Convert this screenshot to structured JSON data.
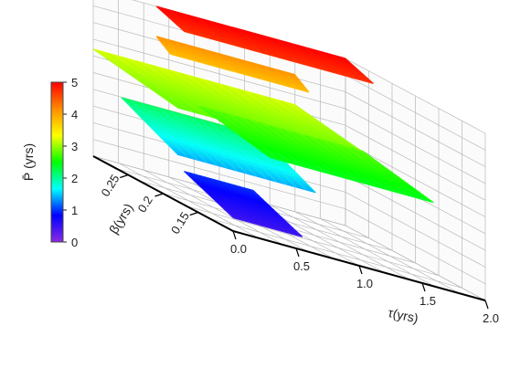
{
  "chart_data": {
    "type": "surface3d",
    "title": "",
    "xlabel": "τ(yrs)",
    "ylabel": "β(yrs)",
    "zlabel": "P̄ (yrs)",
    "xlim": [
      0.0,
      2.0
    ],
    "ylim": [
      0.1,
      0.3
    ],
    "zlim": [
      0,
      5
    ],
    "x_ticks": [
      "0.0",
      "0.5",
      "1.0",
      "1.5",
      "2.0"
    ],
    "y_ticks": [
      "0.15",
      "0.2",
      "0.25"
    ],
    "colorbar": {
      "label": "P̄ (yrs)",
      "ticks": [
        "0",
        "1",
        "2",
        "3",
        "4",
        "5"
      ],
      "range": [
        0,
        5
      ],
      "stops": [
        "#8a2be2",
        "#0000ff",
        "#00ffff",
        "#00ff00",
        "#ffff00",
        "#ff8c00",
        "#ff0000"
      ]
    },
    "grid": true,
    "legend": "colorbar-left",
    "series": [
      {
        "sheet": "low-blue",
        "x": [
          0.0,
          0.55
        ],
        "y": [
          0.1,
          0.17
        ],
        "z": [
          0.4,
          1.0
        ]
      },
      {
        "sheet": "cyan",
        "x": [
          0.0,
          1.1
        ],
        "y": [
          0.18,
          0.26
        ],
        "z": [
          1.4,
          2.2
        ]
      },
      {
        "sheet": "green-main",
        "x": [
          0.0,
          1.6
        ],
        "y": [
          0.18,
          0.3
        ],
        "z": [
          2.8,
          3.2
        ]
      },
      {
        "sheet": "green-lower",
        "x": [
          0.4,
          1.7
        ],
        "y": [
          0.12,
          0.22
        ],
        "z": [
          2.4,
          2.8
        ]
      },
      {
        "sheet": "yellow",
        "x": [
          0.5,
          1.6
        ],
        "y": [
          0.28,
          0.3
        ],
        "z": [
          3.8,
          4.1
        ]
      },
      {
        "sheet": "red-top",
        "x": [
          0.5,
          2.0
        ],
        "y": [
          0.26,
          0.3
        ],
        "z": [
          4.7,
          5.0
        ]
      }
    ]
  }
}
